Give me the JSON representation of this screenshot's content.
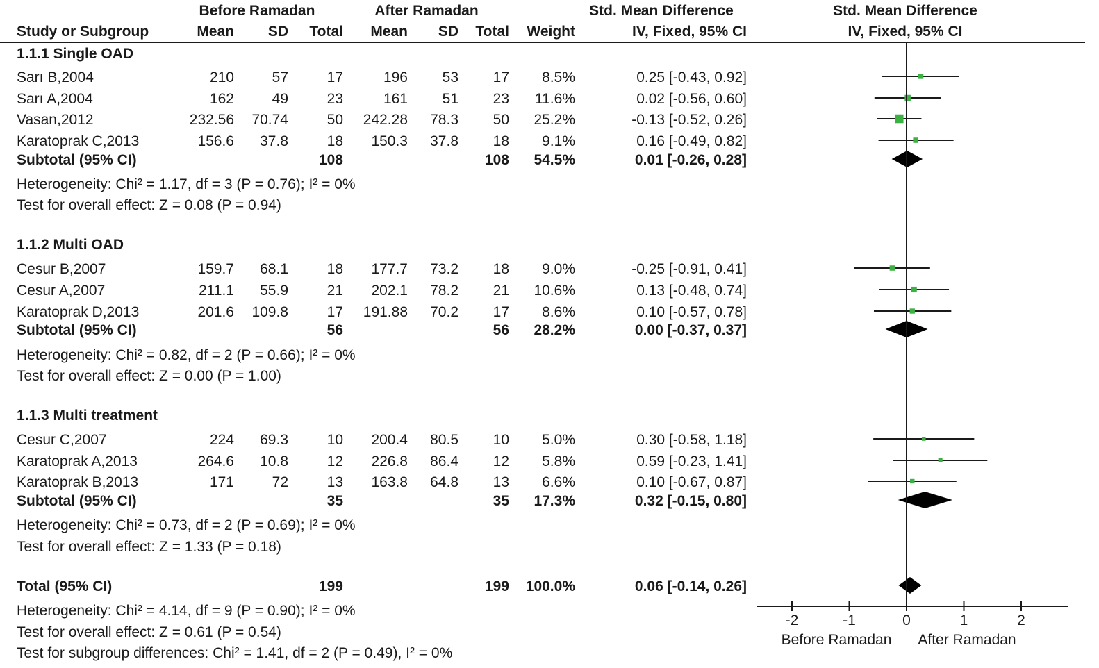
{
  "header": {
    "group_before": "Before Ramadan",
    "group_after": "After Ramadan",
    "effect_title": "Std. Mean Difference",
    "effect_subtitle": "IV, Fixed, 95% CI",
    "plot_title": "Std. Mean Difference",
    "plot_subtitle": "IV, Fixed, 95% CI",
    "col_study": "Study or Subgroup",
    "col_mean1": "Mean",
    "col_sd1": "SD",
    "col_total1": "Total",
    "col_mean2": "Mean",
    "col_sd2": "SD",
    "col_total2": "Total",
    "col_weight": "Weight"
  },
  "colors": {
    "point": "#3cb043",
    "line": "#1a1a1a",
    "diamond": "#000000"
  },
  "chart_data": {
    "type": "forest",
    "xlim": [
      -2,
      2
    ],
    "x_ticks": [
      "-2",
      "-1",
      "0",
      "1",
      "2"
    ],
    "axis_labels": {
      "left": "Before Ramadan",
      "right": "After Ramadan"
    },
    "subgroups": [
      {
        "title": "1.1.1 Single OAD",
        "studies": [
          {
            "name": "Sarı B,2004",
            "mean1": "210",
            "sd1": "57",
            "n1": "17",
            "mean2": "196",
            "sd2": "53",
            "n2": "17",
            "weight": "8.5%",
            "ci_text": "0.25 [-0.43, 0.92]",
            "est": 0.25,
            "lo": -0.43,
            "hi": 0.92,
            "w": 8.5
          },
          {
            "name": "Sarı A,2004",
            "mean1": "162",
            "sd1": "49",
            "n1": "23",
            "mean2": "161",
            "sd2": "51",
            "n2": "23",
            "weight": "11.6%",
            "ci_text": "0.02 [-0.56, 0.60]",
            "est": 0.02,
            "lo": -0.56,
            "hi": 0.6,
            "w": 11.6
          },
          {
            "name": "Vasan,2012",
            "mean1": "232.56",
            "sd1": "70.74",
            "n1": "50",
            "mean2": "242.28",
            "sd2": "78.3",
            "n2": "50",
            "weight": "25.2%",
            "ci_text": "-0.13 [-0.52, 0.26]",
            "est": -0.13,
            "lo": -0.52,
            "hi": 0.26,
            "w": 25.2
          },
          {
            "name": "Karatoprak C,2013",
            "mean1": "156.6",
            "sd1": "37.8",
            "n1": "18",
            "mean2": "150.3",
            "sd2": "37.8",
            "n2": "18",
            "weight": "9.1%",
            "ci_text": "0.16 [-0.49, 0.82]",
            "est": 0.16,
            "lo": -0.49,
            "hi": 0.82,
            "w": 9.1
          }
        ],
        "subtotal": {
          "label": "Subtotal (95% CI)",
          "n1": "108",
          "n2": "108",
          "weight": "54.5%",
          "ci_text": "0.01 [-0.26, 0.28]",
          "est": 0.01,
          "lo": -0.26,
          "hi": 0.28
        },
        "heterogeneity": "Heterogeneity: Chi² = 1.17, df = 3 (P = 0.76); I² = 0%",
        "overall": "Test for overall effect: Z = 0.08 (P = 0.94)"
      },
      {
        "title": "1.1.2 Multi OAD",
        "studies": [
          {
            "name": "Cesur B,2007",
            "mean1": "159.7",
            "sd1": "68.1",
            "n1": "18",
            "mean2": "177.7",
            "sd2": "73.2",
            "n2": "18",
            "weight": "9.0%",
            "ci_text": "-0.25 [-0.91, 0.41]",
            "est": -0.25,
            "lo": -0.91,
            "hi": 0.41,
            "w": 9.0
          },
          {
            "name": "Cesur A,2007",
            "mean1": "211.1",
            "sd1": "55.9",
            "n1": "21",
            "mean2": "202.1",
            "sd2": "78.2",
            "n2": "21",
            "weight": "10.6%",
            "ci_text": "0.13 [-0.48, 0.74]",
            "est": 0.13,
            "lo": -0.48,
            "hi": 0.74,
            "w": 10.6
          },
          {
            "name": "Karatoprak D,2013",
            "mean1": "201.6",
            "sd1": "109.8",
            "n1": "17",
            "mean2": "191.88",
            "sd2": "70.2",
            "n2": "17",
            "weight": "8.6%",
            "ci_text": "0.10 [-0.57, 0.78]",
            "est": 0.1,
            "lo": -0.57,
            "hi": 0.78,
            "w": 8.6
          }
        ],
        "subtotal": {
          "label": "Subtotal (95% CI)",
          "n1": "56",
          "n2": "56",
          "weight": "28.2%",
          "ci_text": "0.00 [-0.37, 0.37]",
          "est": 0.0,
          "lo": -0.37,
          "hi": 0.37
        },
        "heterogeneity": "Heterogeneity: Chi² = 0.82, df = 2 (P = 0.66); I² = 0%",
        "overall": "Test for overall effect: Z = 0.00 (P = 1.00)"
      },
      {
        "title": "1.1.3 Multi treatment",
        "studies": [
          {
            "name": "Cesur C,2007",
            "mean1": "224",
            "sd1": "69.3",
            "n1": "10",
            "mean2": "200.4",
            "sd2": "80.5",
            "n2": "10",
            "weight": "5.0%",
            "ci_text": "0.30 [-0.58, 1.18]",
            "est": 0.3,
            "lo": -0.58,
            "hi": 1.18,
            "w": 5.0
          },
          {
            "name": "Karatoprak A,2013",
            "mean1": "264.6",
            "sd1": "10.8",
            "n1": "12",
            "mean2": "226.8",
            "sd2": "86.4",
            "n2": "12",
            "weight": "5.8%",
            "ci_text": "0.59 [-0.23, 1.41]",
            "est": 0.59,
            "lo": -0.23,
            "hi": 1.41,
            "w": 5.8
          },
          {
            "name": "Karatoprak B,2013",
            "mean1": "171",
            "sd1": "72",
            "n1": "13",
            "mean2": "163.8",
            "sd2": "64.8",
            "n2": "13",
            "weight": "6.6%",
            "ci_text": "0.10 [-0.67, 0.87]",
            "est": 0.1,
            "lo": -0.67,
            "hi": 0.87,
            "w": 6.6
          }
        ],
        "subtotal": {
          "label": "Subtotal (95% CI)",
          "n1": "35",
          "n2": "35",
          "weight": "17.3%",
          "ci_text": "0.32 [-0.15, 0.80]",
          "est": 0.32,
          "lo": -0.15,
          "hi": 0.8
        },
        "heterogeneity": "Heterogeneity: Chi² = 0.73, df = 2 (P = 0.69); I² = 0%",
        "overall": "Test for overall effect: Z = 1.33 (P = 0.18)"
      }
    ],
    "total": {
      "label": "Total (95% CI)",
      "n1": "199",
      "n2": "199",
      "weight": "100.0%",
      "ci_text": "0.06 [-0.14, 0.26]",
      "est": 0.06,
      "lo": -0.14,
      "hi": 0.26,
      "heterogeneity": "Heterogeneity: Chi² = 4.14, df = 9 (P = 0.90); I² = 0%",
      "overall": "Test for overall effect: Z = 0.61 (P = 0.54)",
      "subgroup_diff": "Test for subgroup differences: Chi² = 1.41, df = 2 (P = 0.49), I² = 0%"
    }
  }
}
